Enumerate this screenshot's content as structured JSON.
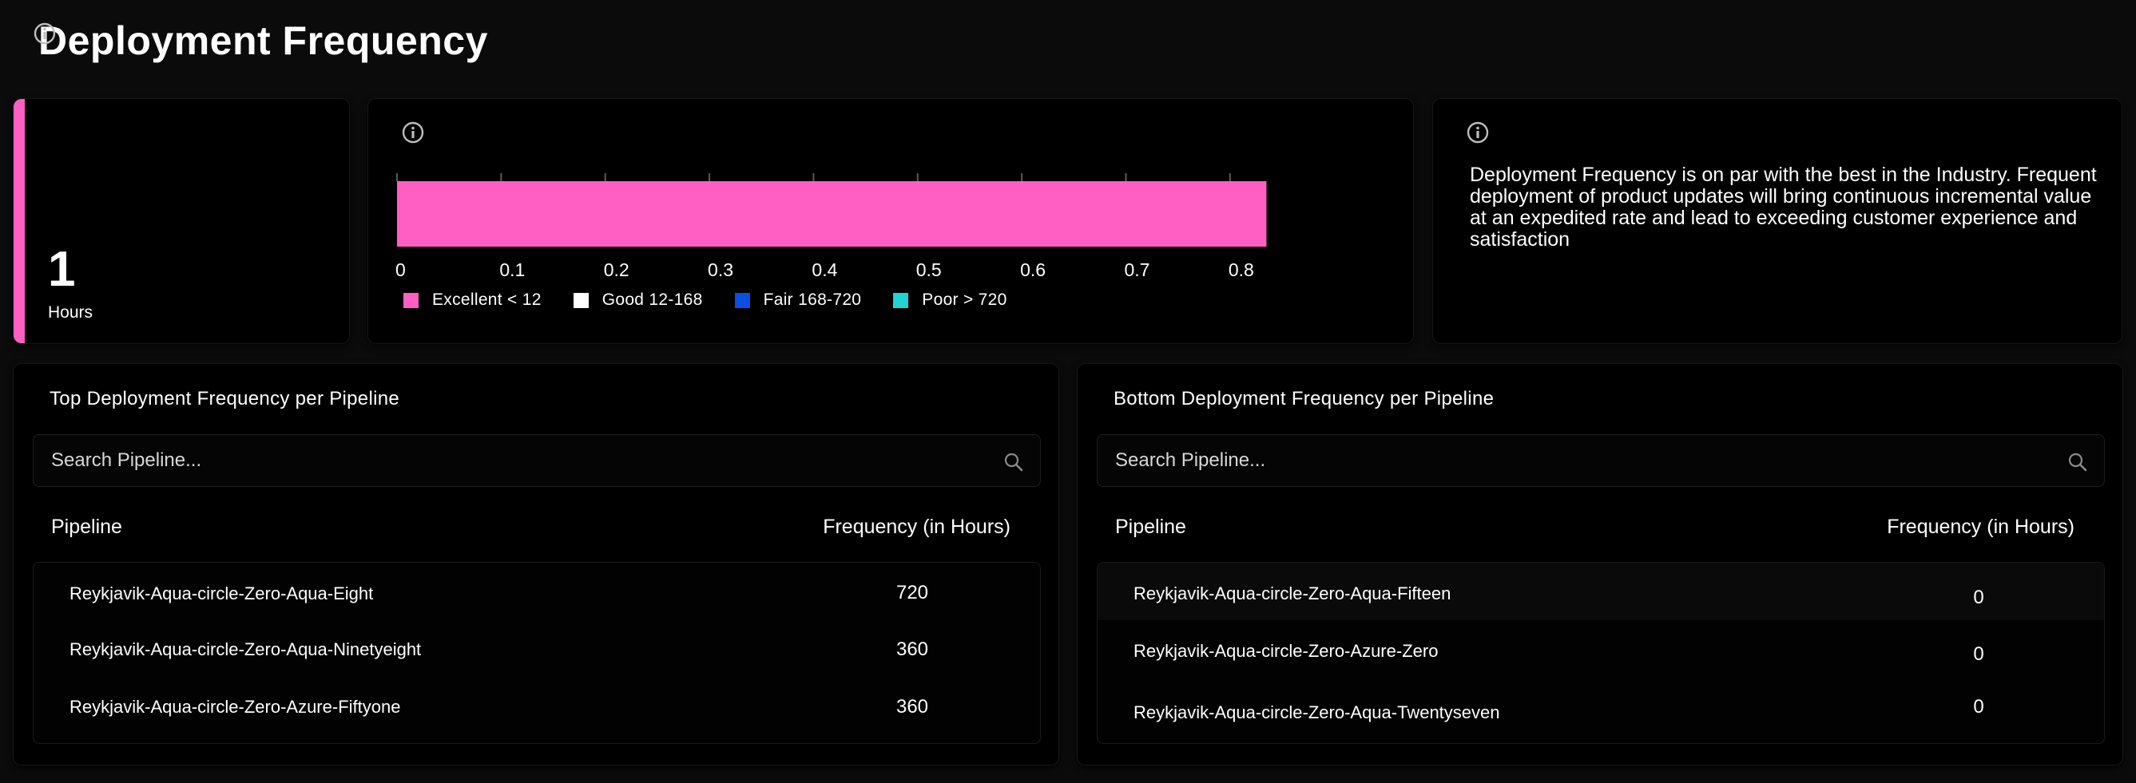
{
  "page": {
    "title": "Deployment Frequency"
  },
  "metric": {
    "value": "1",
    "unit": "Hours"
  },
  "chart_data": {
    "type": "bar",
    "orientation": "horizontal",
    "values": [
      0.835
    ],
    "xlim": [
      0,
      0.85
    ],
    "ticks": [
      "0",
      "0.1",
      "0.2",
      "0.3",
      "0.4",
      "0.5",
      "0.6",
      "0.7",
      "0.8"
    ],
    "tick_values": [
      0,
      0.1,
      0.2,
      0.3,
      0.4,
      0.5,
      0.6,
      0.7,
      0.8
    ],
    "bar_color": "#ff5fc3",
    "legend": [
      {
        "label": "Excellent < 12",
        "color": "#ff5fc3"
      },
      {
        "label": "Good 12-168",
        "color": "#ffffff"
      },
      {
        "label": "Fair 168-720",
        "color": "#0a4fe0"
      },
      {
        "label": "Poor > 720",
        "color": "#21d4d4"
      }
    ],
    "legend_position": "bottom-left"
  },
  "description": {
    "text": "Deployment Frequency is on par with the best in the Industry. Frequent deployment of product updates will bring continuous incremental value at an expedited rate and lead to exceeding customer experience and satisfaction"
  },
  "top_table": {
    "title": "Top Deployment Frequency per Pipeline",
    "search_placeholder": "Search Pipeline...",
    "columns": {
      "pipeline": "Pipeline",
      "frequency": "Frequency (in Hours)"
    },
    "rows": [
      {
        "pipeline": "Reykjavik-Aqua-circle-Zero-Aqua-Eight",
        "frequency": "720"
      },
      {
        "pipeline": "Reykjavik-Aqua-circle-Zero-Aqua-Ninetyeight",
        "frequency": "360"
      },
      {
        "pipeline": "Reykjavik-Aqua-circle-Zero-Azure-Fiftyone",
        "frequency": "360"
      }
    ]
  },
  "bottom_table": {
    "title": "Bottom Deployment Frequency per Pipeline",
    "search_placeholder": "Search Pipeline...",
    "columns": {
      "pipeline": "Pipeline",
      "frequency": "Frequency (in Hours)"
    },
    "rows": [
      {
        "pipeline": "Reykjavik-Aqua-circle-Zero-Aqua-Fifteen",
        "frequency": "0"
      },
      {
        "pipeline": "Reykjavik-Aqua-circle-Zero-Azure-Zero",
        "frequency": "0"
      },
      {
        "pipeline": "Reykjavik-Aqua-circle-Zero-Aqua-Twentyseven",
        "frequency": "0"
      }
    ]
  },
  "icons": {
    "info": "info-circle-icon",
    "search": "search-icon"
  },
  "colors": {
    "accent": "#ff5fc3",
    "background": "#0b0b0b",
    "card": "#000000"
  }
}
